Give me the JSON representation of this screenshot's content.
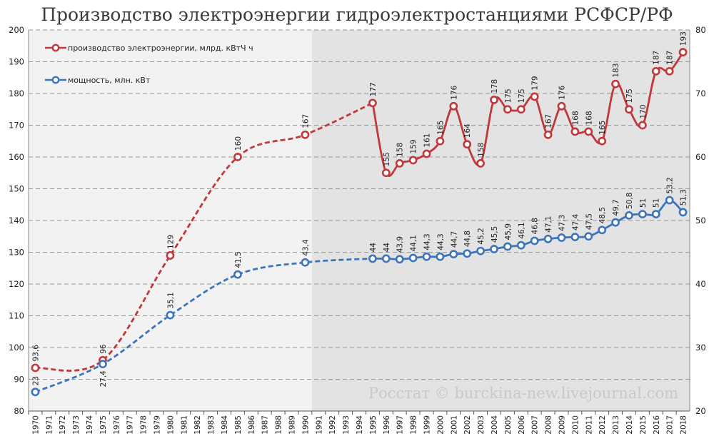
{
  "title": "Производство электроэнергии гидроэлектростанциями РСФСР/РФ",
  "watermark": "Росстат © burckina-new.livejournal.com",
  "colors": {
    "production": "#c0393b",
    "capacity": "#3d75b8",
    "shade_left": "#f2f2f2",
    "shade_right": "#e3e3e3",
    "grid": "#9a9a9a"
  },
  "chart_data": {
    "type": "line",
    "title": "Производство электроэнергии гидроэлектростанциями РСФСР/РФ",
    "x": [
      "1970",
      "1971",
      "1972",
      "1973",
      "1974",
      "1975",
      "1976",
      "1977",
      "1978",
      "1979",
      "1980",
      "1981",
      "1982",
      "1983",
      "1984",
      "1985",
      "1986",
      "1987",
      "1988",
      "1989",
      "1990",
      "1991",
      "1992",
      "1993",
      "1994",
      "1995",
      "1996",
      "1997",
      "1998",
      "1999",
      "2000",
      "2001",
      "2002",
      "2003",
      "2004",
      "2005",
      "2006",
      "2007",
      "2008",
      "2009",
      "2010",
      "2011",
      "2012",
      "2013",
      "2014",
      "2015",
      "2016",
      "2017",
      "2018"
    ],
    "y_left": {
      "min": 80,
      "max": 200,
      "step": 10,
      "ticks": [
        "80",
        "90",
        "100",
        "110",
        "120",
        "130",
        "140",
        "150",
        "160",
        "170",
        "180",
        "190",
        "200"
      ]
    },
    "y_right": {
      "min": 20,
      "max": 80,
      "step": 10,
      "ticks": [
        "20",
        "30",
        "40",
        "50",
        "60",
        "70",
        "80"
      ]
    },
    "grid": true,
    "legend_position": "top-left",
    "series": [
      {
        "name": "производство электроэнергии,  млрд. кВтЧ ч",
        "axis": "left",
        "color": "#c0393b",
        "dashed_until": "1995",
        "points": [
          {
            "x": "1970",
            "y": 93.6,
            "label": "93,6"
          },
          {
            "x": "1975",
            "y": 96,
            "label": "96"
          },
          {
            "x": "1980",
            "y": 129,
            "label": "129"
          },
          {
            "x": "1985",
            "y": 160,
            "label": "160"
          },
          {
            "x": "1990",
            "y": 167,
            "label": "167"
          },
          {
            "x": "1995",
            "y": 177,
            "label": "177"
          },
          {
            "x": "1996",
            "y": 155,
            "label": "155"
          },
          {
            "x": "1997",
            "y": 158,
            "label": "158"
          },
          {
            "x": "1998",
            "y": 159,
            "label": "159"
          },
          {
            "x": "1999",
            "y": 161,
            "label": "161"
          },
          {
            "x": "2000",
            "y": 165,
            "label": "165"
          },
          {
            "x": "2001",
            "y": 176,
            "label": "176"
          },
          {
            "x": "2002",
            "y": 164,
            "label": "164"
          },
          {
            "x": "2003",
            "y": 158,
            "label": "158"
          },
          {
            "x": "2004",
            "y": 178,
            "label": "178"
          },
          {
            "x": "2005",
            "y": 175,
            "label": "175"
          },
          {
            "x": "2006",
            "y": 175,
            "label": "175"
          },
          {
            "x": "2007",
            "y": 179,
            "label": "179"
          },
          {
            "x": "2008",
            "y": 167,
            "label": "167"
          },
          {
            "x": "2009",
            "y": 176,
            "label": "176"
          },
          {
            "x": "2010",
            "y": 168,
            "label": "168"
          },
          {
            "x": "2011",
            "y": 168,
            "label": "168"
          },
          {
            "x": "2012",
            "y": 165,
            "label": "165"
          },
          {
            "x": "2013",
            "y": 183,
            "label": "183"
          },
          {
            "x": "2014",
            "y": 175,
            "label": "175"
          },
          {
            "x": "2015",
            "y": 170,
            "label": "170"
          },
          {
            "x": "2016",
            "y": 187,
            "label": "187"
          },
          {
            "x": "2017",
            "y": 187,
            "label": "187"
          },
          {
            "x": "2018",
            "y": 193,
            "label": "193"
          }
        ]
      },
      {
        "name": "мощность, млн. кВт",
        "axis": "right",
        "color": "#3d75b8",
        "dashed_until": "1995",
        "points": [
          {
            "x": "1970",
            "y": 23,
            "label": "23"
          },
          {
            "x": "1975",
            "y": 27.4,
            "label": "27,4"
          },
          {
            "x": "1980",
            "y": 35.1,
            "label": "35,1"
          },
          {
            "x": "1985",
            "y": 41.5,
            "label": "41,5"
          },
          {
            "x": "1990",
            "y": 43.4,
            "label": "43,4"
          },
          {
            "x": "1995",
            "y": 44,
            "label": "44"
          },
          {
            "x": "1996",
            "y": 44,
            "label": "44"
          },
          {
            "x": "1997",
            "y": 43.9,
            "label": "43,9"
          },
          {
            "x": "1998",
            "y": 44.1,
            "label": "44,1"
          },
          {
            "x": "1999",
            "y": 44.3,
            "label": "44,3"
          },
          {
            "x": "2000",
            "y": 44.3,
            "label": "44,3"
          },
          {
            "x": "2001",
            "y": 44.7,
            "label": "44,7"
          },
          {
            "x": "2002",
            "y": 44.8,
            "label": "44,8"
          },
          {
            "x": "2003",
            "y": 45.2,
            "label": "45,2"
          },
          {
            "x": "2004",
            "y": 45.5,
            "label": "45,5"
          },
          {
            "x": "2005",
            "y": 45.9,
            "label": "45,9"
          },
          {
            "x": "2006",
            "y": 46.1,
            "label": "46,1"
          },
          {
            "x": "2007",
            "y": 46.8,
            "label": "46,8"
          },
          {
            "x": "2008",
            "y": 47.1,
            "label": "47,1"
          },
          {
            "x": "2009",
            "y": 47.3,
            "label": "47,3"
          },
          {
            "x": "2010",
            "y": 47.4,
            "label": "47,4"
          },
          {
            "x": "2011",
            "y": 47.5,
            "label": "47,5"
          },
          {
            "x": "2012",
            "y": 48.5,
            "label": "48,5"
          },
          {
            "x": "2013",
            "y": 49.7,
            "label": "49,7"
          },
          {
            "x": "2014",
            "y": 50.8,
            "label": "50,8"
          },
          {
            "x": "2015",
            "y": 51,
            "label": "51"
          },
          {
            "x": "2016",
            "y": 51,
            "label": "51"
          },
          {
            "x": "2017",
            "y": 53.2,
            "label": "53,2"
          },
          {
            "x": "2018",
            "y": 51.3,
            "label": "51,3"
          }
        ]
      }
    ]
  }
}
